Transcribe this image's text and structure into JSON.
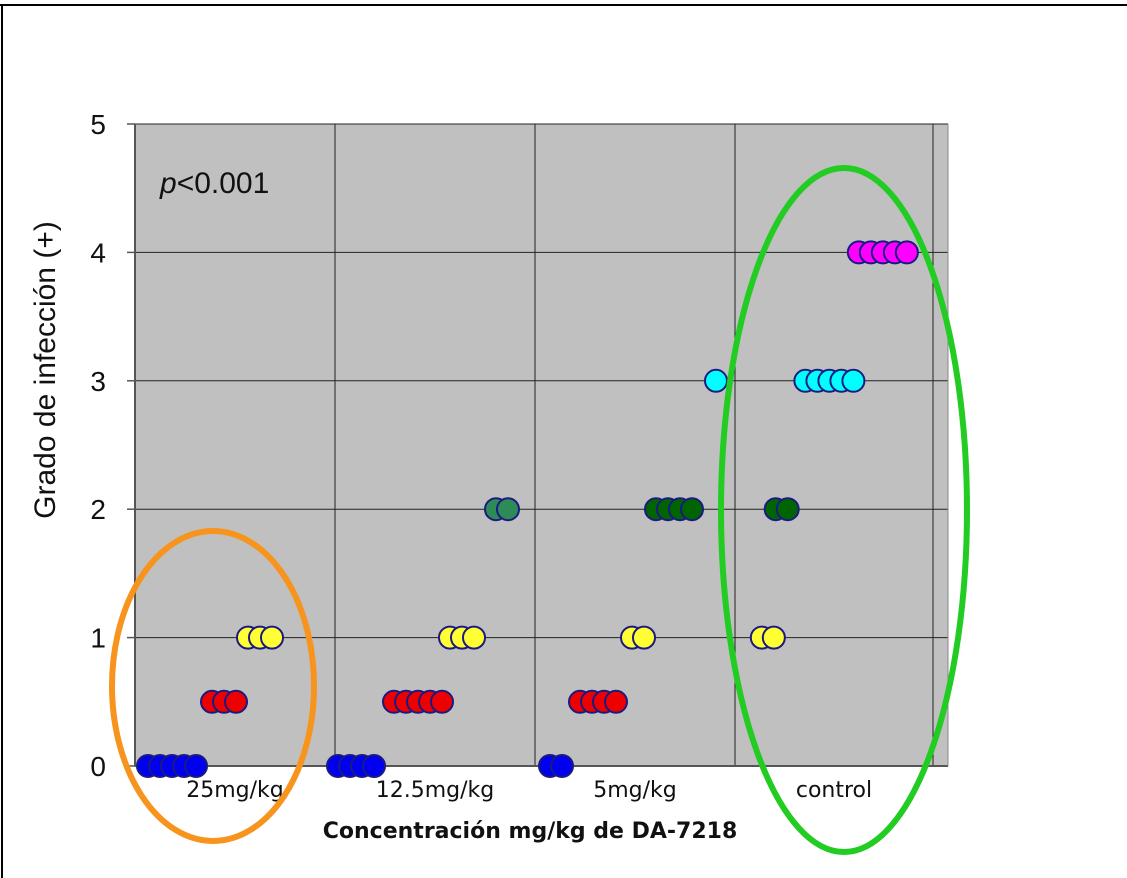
{
  "chart_data": {
    "type": "scatter",
    "ylabel": "Grado de infección (+)",
    "xlabel": "Concentración mg/kg de DA-7218",
    "annotation": {
      "italic": "p",
      "rest": "<0.001"
    },
    "categories": [
      "25mg/kg",
      "12.5mg/kg",
      "5mg/kg",
      "control"
    ],
    "ylim": [
      0,
      5
    ],
    "yticks": [
      "0",
      "1",
      "2",
      "3",
      "4",
      "5"
    ],
    "grid": true,
    "plot_background": "#c0c0c0",
    "marker_edge_color": "#1a1a80",
    "highlights": [
      {
        "category": "25mg/kg",
        "color": "#f7941d"
      },
      {
        "category": "control",
        "color": "#22cc22"
      }
    ],
    "groups": [
      {
        "category": "25mg/kg",
        "points": [
          {
            "y": 0,
            "count": 5,
            "color": "#0000ee"
          },
          {
            "y": 0.5,
            "count": 3,
            "color": "#ee0000"
          },
          {
            "y": 1,
            "count": 3,
            "color": "#ffff33"
          }
        ]
      },
      {
        "category": "12.5mg/kg",
        "points": [
          {
            "y": 0,
            "count": 4,
            "color": "#0000ee"
          },
          {
            "y": 0.5,
            "count": 5,
            "color": "#ee0000"
          },
          {
            "y": 1,
            "count": 3,
            "color": "#ffff33"
          },
          {
            "y": 2,
            "count": 2,
            "color": "#2e8b57"
          }
        ]
      },
      {
        "category": "5mg/kg",
        "points": [
          {
            "y": 0,
            "count": 2,
            "color": "#0000ee"
          },
          {
            "y": 0.5,
            "count": 4,
            "color": "#ee0000"
          },
          {
            "y": 1,
            "count": 2,
            "color": "#ffff33"
          },
          {
            "y": 2,
            "count": 4,
            "color": "#006400"
          },
          {
            "y": 3,
            "count": 1,
            "color": "#00ffff"
          }
        ]
      },
      {
        "category": "control",
        "points": [
          {
            "y": 1,
            "count": 2,
            "color": "#ffff33"
          },
          {
            "y": 2,
            "count": 2,
            "color": "#006400"
          },
          {
            "y": 3,
            "count": 5,
            "color": "#00ffff"
          },
          {
            "y": 4,
            "count": 5,
            "color": "#ff00ff"
          }
        ]
      }
    ]
  }
}
